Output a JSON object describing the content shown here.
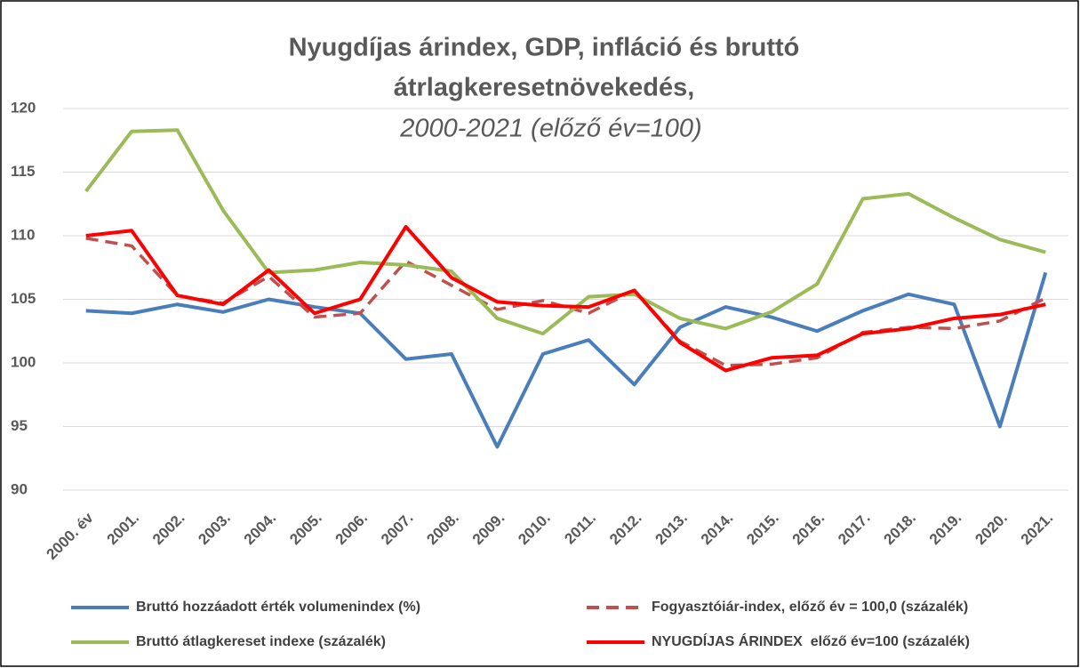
{
  "chart_data": {
    "type": "line",
    "title": [
      "Nyugdíjas árindex, GDP, infláció és bruttó",
      "átrlagkeresetnövekedés,"
    ],
    "subtitle": "2000-2021 (előző év=100)",
    "categories": [
      "2000. év",
      "2001.",
      "2002.",
      "2003.",
      "2004.",
      "2005.",
      "2006.",
      "2007.",
      "2008.",
      "2009.",
      "2010.",
      "2011.",
      "2012.",
      "2013.",
      "2014.",
      "2015.",
      "2016.",
      "2017.",
      "2018.",
      "2019.",
      "2020.",
      "2021."
    ],
    "series": [
      {
        "name": "Bruttó hozzáadott érték volumenindex (%)",
        "color": "#4a7ebb",
        "dashed": false,
        "values": [
          104.1,
          103.9,
          104.6,
          104.0,
          105.0,
          104.4,
          103.9,
          100.3,
          100.7,
          93.4,
          100.7,
          101.8,
          98.3,
          102.8,
          104.4,
          103.6,
          102.5,
          104.1,
          105.4,
          104.6,
          95.0,
          107.1
        ]
      },
      {
        "name": "Fogyasztóiár-index, előző év = 100,0 (százalék)",
        "color": "#c0504d",
        "dashed": true,
        "values": [
          109.8,
          109.2,
          105.3,
          104.7,
          106.8,
          103.6,
          103.9,
          108.0,
          106.1,
          104.2,
          104.9,
          103.9,
          105.7,
          101.7,
          99.8,
          99.9,
          100.4,
          102.4,
          102.8,
          102.7,
          103.3,
          105.1
        ]
      },
      {
        "name": "Bruttó átlagkereset indexe (százalék)",
        "color": "#9bbb59",
        "dashed": false,
        "values": [
          113.5,
          118.2,
          118.3,
          112.0,
          107.1,
          107.3,
          107.9,
          107.7,
          107.2,
          103.5,
          102.3,
          105.2,
          105.4,
          103.5,
          102.7,
          104.0,
          106.2,
          112.9,
          113.3,
          111.4,
          109.7,
          108.7
        ]
      },
      {
        "name": "NYUGDÍJAS ÁRINDEX  előző év=100 (százalék)",
        "color": "#ff0000",
        "dashed": false,
        "values": [
          110.0,
          110.4,
          105.3,
          104.6,
          107.3,
          103.9,
          105.0,
          110.7,
          106.7,
          104.8,
          104.5,
          104.4,
          105.7,
          101.6,
          99.4,
          100.4,
          100.6,
          102.3,
          102.7,
          103.5,
          103.8,
          104.6
        ]
      }
    ],
    "ylim": [
      90,
      120
    ],
    "yticks": [
      90,
      95,
      100,
      105,
      110,
      115,
      120
    ],
    "grid": true,
    "legend": "bottom"
  }
}
